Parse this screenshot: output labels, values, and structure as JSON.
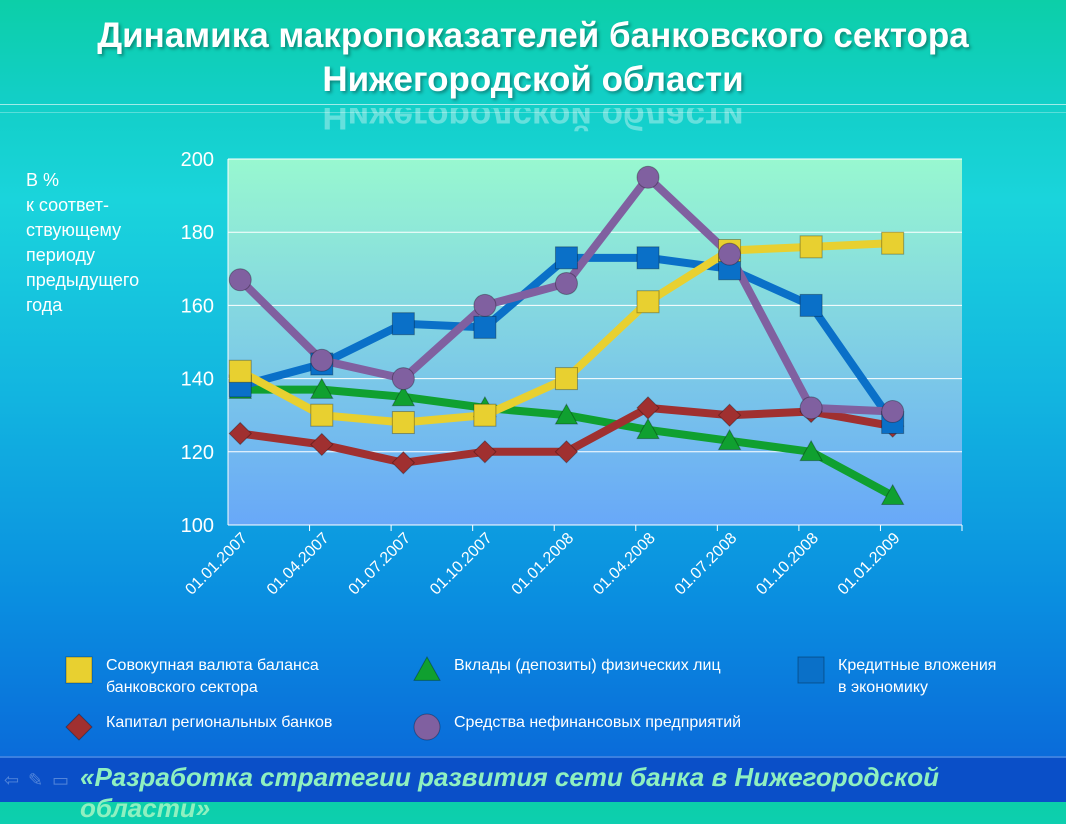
{
  "title_line1": "Динамика макропоказателей банковского сектора",
  "title_line2": "Нижегородской области",
  "footer": "«Разработка стратегии развития сети банка в Нижегородской области»",
  "chart_data": {
    "type": "line",
    "ylabel": "В %\nк соответ-\nствующему\nпериоду\nпредыдущего\nгода",
    "ylim": [
      100,
      200
    ],
    "yticks": [
      100,
      120,
      140,
      160,
      180,
      200
    ],
    "grid": true,
    "legend_position": "bottom",
    "categories": [
      "01.01.2007",
      "01.04.2007",
      "01.07.2007",
      "01.10.2007",
      "01.01.2008",
      "01.04.2008",
      "01.07.2008",
      "01.10.2008",
      "01.01.2009"
    ],
    "series": [
      {
        "name": "Совокупная валюта баланса\nбанковского сектора",
        "color": "#e8d030",
        "marker": "square",
        "values": [
          142,
          130,
          128,
          130,
          140,
          161,
          175,
          176,
          177
        ]
      },
      {
        "name": "Вклады (депозиты) физических лиц",
        "color": "#10a030",
        "marker": "triangle",
        "values": [
          137,
          137,
          135,
          132,
          130,
          126,
          123,
          120,
          108
        ]
      },
      {
        "name": "Кредитные вложения\nв экономику",
        "color": "#0a70c8",
        "marker": "square",
        "values": [
          138,
          144,
          155,
          154,
          173,
          173,
          170,
          160,
          128
        ]
      },
      {
        "name": "Капитал региональных банков",
        "color": "#a03030",
        "marker": "diamond",
        "values": [
          125,
          122,
          117,
          120,
          120,
          132,
          130,
          131,
          127
        ]
      },
      {
        "name": "Средства нефинансовых предприятий",
        "color": "#8060a0",
        "marker": "circle",
        "values": [
          167,
          145,
          140,
          160,
          166,
          195,
          174,
          132,
          131
        ]
      }
    ]
  }
}
